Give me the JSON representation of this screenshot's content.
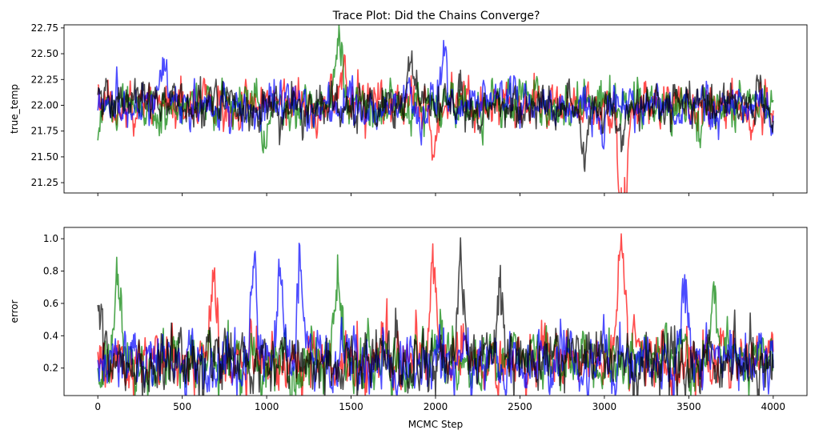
{
  "chart_data": {
    "type": "line",
    "title": "Trace Plot: Did the Chains Converge?",
    "xlabel": "MCMC Step",
    "xlim": [
      -200,
      4200
    ],
    "xticks": [
      0,
      500,
      1000,
      1500,
      2000,
      2500,
      3000,
      3500,
      4000
    ],
    "grid": false,
    "series_colors": [
      "#ff0000",
      "#008000",
      "#0000ff",
      "#000000"
    ],
    "series_opacity": 0.7,
    "panels": [
      {
        "ylabel": "true_temp",
        "ylim": [
          21.15,
          22.78
        ],
        "yticks": [
          21.25,
          21.5,
          21.75,
          22.0,
          22.25,
          22.5,
          22.75
        ],
        "yformat": 2,
        "show_xtick_labels": false,
        "center": 22.0,
        "noise_sd": 0.09,
        "series": [
          {
            "color": "#ff0000",
            "seed": 11,
            "values_sample": [
              [
                0,
                22.2
              ],
              [
                1450,
                22.35
              ],
              [
                1990,
                21.5
              ],
              [
                3100,
                21.2
              ],
              [
                3120,
                21.3
              ],
              [
                4000,
                21.95
              ]
            ]
          },
          {
            "color": "#008000",
            "seed": 23,
            "values_sample": [
              [
                0,
                21.66
              ],
              [
                980,
                21.54
              ],
              [
                1430,
                22.68
              ],
              [
                3560,
                21.65
              ],
              [
                4000,
                22.05
              ]
            ]
          },
          {
            "color": "#0000ff",
            "seed": 37,
            "values_sample": [
              [
                0,
                21.95
              ],
              [
                390,
                22.45
              ],
              [
                2050,
                22.48
              ],
              [
                2980,
                21.72
              ],
              [
                4000,
                21.9
              ]
            ]
          },
          {
            "color": "#000000",
            "seed": 53,
            "values_sample": [
              [
                0,
                22.1
              ],
              [
                1850,
                22.42
              ],
              [
                2880,
                21.4
              ],
              [
                3100,
                21.55
              ],
              [
                4000,
                21.85
              ]
            ]
          }
        ]
      },
      {
        "ylabel": "error",
        "ylim": [
          0.03,
          1.07
        ],
        "yticks": [
          0.2,
          0.4,
          0.6,
          0.8,
          1.0
        ],
        "yformat": 1,
        "show_xtick_labels": true,
        "center": 0.25,
        "noise_sd": 0.08,
        "series": [
          {
            "color": "#ff0000",
            "seed": 71,
            "values_sample": [
              [
                0,
                0.3
              ],
              [
                690,
                0.82
              ],
              [
                1990,
                0.8
              ],
              [
                3100,
                1.03
              ],
              [
                4000,
                0.3
              ]
            ]
          },
          {
            "color": "#008000",
            "seed": 83,
            "values_sample": [
              [
                0,
                0.2
              ],
              [
                120,
                0.78
              ],
              [
                1420,
                0.9
              ],
              [
                3650,
                0.6
              ],
              [
                4000,
                0.25
              ]
            ]
          },
          {
            "color": "#0000ff",
            "seed": 97,
            "values_sample": [
              [
                0,
                0.25
              ],
              [
                920,
                0.83
              ],
              [
                1080,
                0.82
              ],
              [
                1200,
                0.8
              ],
              [
                3470,
                0.7
              ],
              [
                4000,
                0.2
              ]
            ]
          },
          {
            "color": "#000000",
            "seed": 101,
            "values_sample": [
              [
                0,
                0.59
              ],
              [
                2150,
                0.86
              ],
              [
                2380,
                0.7
              ],
              [
                4000,
                0.2
              ]
            ]
          }
        ]
      }
    ]
  }
}
